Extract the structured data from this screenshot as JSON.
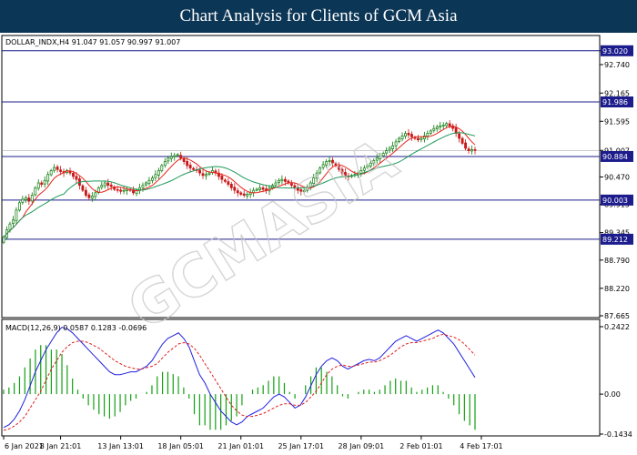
{
  "page_title": "Chart Analysis for Clients of GCM Asia",
  "watermark": "GCMASIA",
  "colors": {
    "banner": "#0c3656",
    "bull_candle": "#0a7a0a",
    "bear_candle": "#c81818",
    "sma_fast": "#e8231c",
    "sma_slow": "#1f9a5a",
    "level_line": "#1c1c8c",
    "macd_line": "#2020e0",
    "signal_line": "#e02020",
    "histogram": "#12a012",
    "label_bg": "#1c1c8c"
  },
  "chart_data": [
    {
      "type": "candlestick",
      "header": "DOLLAR_INDX,H4  91.047 91.057 90.997 91.007",
      "y_ticks": [
        "93.020",
        "92.740",
        "92.165",
        "91.595",
        "91.007",
        "90.470",
        "89.915",
        "89.345",
        "88.790",
        "88.220",
        "87.665"
      ],
      "ylim": [
        87.665,
        93.2
      ],
      "x_ticks": [
        "6 Jan 2021",
        "8 Jan 21:01",
        "13 Jan 13:01",
        "18 Jan 05:01",
        "21 Jan 01:01",
        "25 Jan 17:01",
        "28 Jan 09:01",
        "2 Feb 01:01",
        "4 Feb 17:01"
      ],
      "x_tick_index": [
        0,
        18,
        37,
        56,
        75,
        94,
        113,
        132,
        151
      ],
      "levels": [
        "93.020",
        "91.986",
        "90.884",
        "90.003",
        "89.212"
      ],
      "level_values": [
        93.02,
        91.986,
        90.884,
        90.003,
        89.212
      ],
      "last_price": "91.007",
      "closes": [
        89.25,
        89.4,
        89.52,
        89.6,
        89.8,
        89.95,
        90.02,
        90.05,
        89.98,
        90.1,
        90.25,
        90.35,
        90.32,
        90.4,
        90.52,
        90.6,
        90.66,
        90.62,
        90.58,
        90.55,
        90.6,
        90.55,
        90.48,
        90.42,
        90.3,
        90.2,
        90.1,
        90.05,
        90.08,
        90.15,
        90.25,
        90.3,
        90.35,
        90.3,
        90.28,
        90.22,
        90.2,
        90.18,
        90.2,
        90.22,
        90.2,
        90.15,
        90.2,
        90.25,
        90.3,
        90.35,
        90.4,
        90.45,
        90.52,
        90.6,
        90.7,
        90.78,
        90.85,
        90.88,
        90.9,
        90.92,
        90.85,
        90.78,
        90.7,
        90.65,
        90.62,
        90.6,
        90.55,
        90.5,
        90.52,
        90.55,
        90.6,
        90.55,
        90.48,
        90.42,
        90.38,
        90.32,
        90.25,
        90.2,
        90.15,
        90.12,
        90.1,
        90.12,
        90.15,
        90.2,
        90.22,
        90.25,
        90.22,
        90.2,
        90.25,
        90.3,
        90.35,
        90.4,
        90.42,
        90.38,
        90.35,
        90.3,
        90.25,
        90.2,
        90.18,
        90.2,
        90.25,
        90.35,
        90.45,
        90.55,
        90.65,
        90.72,
        90.78,
        90.8,
        90.75,
        90.7,
        90.62,
        90.55,
        90.5,
        90.48,
        90.5,
        90.52,
        90.55,
        90.6,
        90.65,
        90.7,
        90.75,
        90.8,
        90.85,
        90.9,
        90.95,
        91.0,
        91.05,
        91.1,
        91.18,
        91.25,
        91.3,
        91.35,
        91.32,
        91.28,
        91.25,
        91.22,
        91.25,
        91.3,
        91.35,
        91.4,
        91.45,
        91.48,
        91.5,
        91.52,
        91.55,
        91.5,
        91.45,
        91.35,
        91.25,
        91.15,
        91.05,
        91.0,
        91.02,
        91.01
      ]
    },
    {
      "type": "macd",
      "header": "MACD(12,26,9) 0.0587 0.1283 -0.0696",
      "y_ticks": [
        "0.2422",
        "0.00",
        "-0.1434"
      ],
      "ylim": [
        -0.1434,
        0.2422
      ],
      "macd": [
        -0.12,
        -0.11,
        -0.09,
        -0.06,
        -0.02,
        0.03,
        0.08,
        0.12,
        0.16,
        0.19,
        0.22,
        0.24,
        0.235,
        0.22,
        0.2,
        0.18,
        0.16,
        0.14,
        0.12,
        0.1,
        0.08,
        0.07,
        0.07,
        0.075,
        0.08,
        0.08,
        0.09,
        0.1,
        0.12,
        0.15,
        0.18,
        0.2,
        0.21,
        0.22,
        0.2,
        0.17,
        0.12,
        0.07,
        0.04,
        0.0,
        -0.03,
        -0.06,
        -0.08,
        -0.1,
        -0.11,
        -0.1,
        -0.08,
        -0.07,
        -0.06,
        -0.05,
        -0.03,
        -0.01,
        0.0,
        -0.01,
        -0.03,
        -0.05,
        -0.04,
        -0.01,
        0.03,
        0.07,
        0.1,
        0.12,
        0.13,
        0.12,
        0.1,
        0.09,
        0.1,
        0.11,
        0.12,
        0.125,
        0.12,
        0.13,
        0.15,
        0.17,
        0.19,
        0.2,
        0.21,
        0.2,
        0.19,
        0.2,
        0.21,
        0.22,
        0.23,
        0.22,
        0.2,
        0.18,
        0.15,
        0.12,
        0.09,
        0.06
      ],
      "signal": [
        -0.13,
        -0.125,
        -0.115,
        -0.1,
        -0.08,
        -0.05,
        -0.02,
        0.01,
        0.05,
        0.09,
        0.12,
        0.15,
        0.17,
        0.185,
        0.19,
        0.19,
        0.185,
        0.175,
        0.165,
        0.15,
        0.135,
        0.12,
        0.11,
        0.1,
        0.095,
        0.09,
        0.09,
        0.095,
        0.1,
        0.11,
        0.13,
        0.15,
        0.165,
        0.18,
        0.185,
        0.18,
        0.165,
        0.14,
        0.11,
        0.08,
        0.05,
        0.02,
        -0.01,
        -0.04,
        -0.06,
        -0.075,
        -0.08,
        -0.08,
        -0.075,
        -0.07,
        -0.06,
        -0.05,
        -0.04,
        -0.035,
        -0.035,
        -0.04,
        -0.04,
        -0.03,
        -0.01,
        0.01,
        0.04,
        0.07,
        0.09,
        0.1,
        0.105,
        0.1,
        0.1,
        0.105,
        0.11,
        0.115,
        0.115,
        0.12,
        0.13,
        0.14,
        0.155,
        0.17,
        0.18,
        0.185,
        0.185,
        0.19,
        0.195,
        0.2,
        0.21,
        0.215,
        0.21,
        0.205,
        0.195,
        0.18,
        0.16,
        0.14
      ]
    }
  ]
}
